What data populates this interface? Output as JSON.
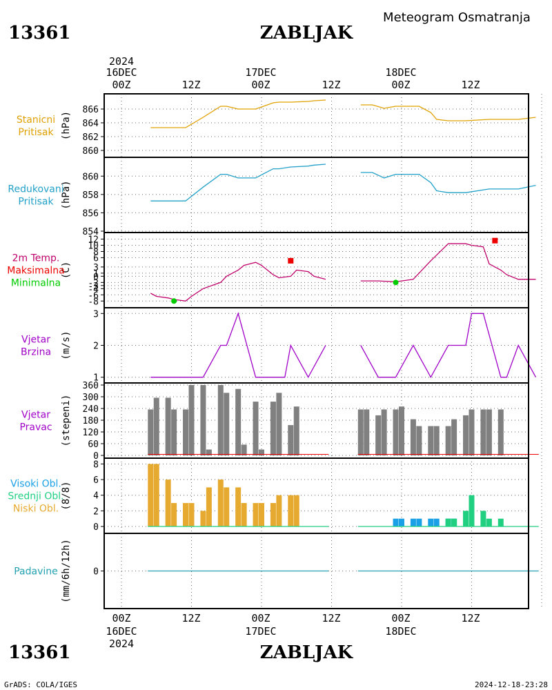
{
  "header": {
    "station_id": "13361",
    "station_name": "ZABLJAK",
    "subtitle": "Meteogram Osmatranja"
  },
  "footer": {
    "station_id": "13361",
    "station_name": "ZABLJAK",
    "credit": "GrADS: COLA/IGES",
    "timestamp": "2024-12-18-23:28"
  },
  "time_axis": {
    "year": "2024",
    "days": [
      "16DEC",
      "17DEC",
      "18DEC"
    ],
    "hour_labels": [
      "00Z",
      "12Z",
      "00Z",
      "12Z",
      "00Z",
      "12Z"
    ]
  },
  "colors": {
    "station_pressure": "#e0a000",
    "reduced_pressure": "#20a0c8",
    "temperature": "#c0006a",
    "max_marker": "#ee0000",
    "min_marker": "#00cc00",
    "wind": "#a000c8",
    "wind_dir_bar": "#808080",
    "high_cloud": "#1aa0e6",
    "mid_cloud": "#20d080",
    "low_cloud": "#e6aa30",
    "precip": "#20a0b0"
  },
  "panels": [
    {
      "key": "station_pressure",
      "labels": [
        "Stanicni",
        "Pritisak"
      ],
      "label_color": "#e0a000",
      "unit": "(hPa)"
    },
    {
      "key": "reduced_pressure",
      "labels": [
        "Redukovani",
        "Pritisak"
      ],
      "label_color": "#20a0c8",
      "unit": "(hPa)"
    },
    {
      "key": "temperature",
      "labels": [
        "2m Temp.",
        "Maksimalna",
        "Minimalna"
      ],
      "label_colors": [
        "#c0006a",
        "#ee0000",
        "#00cc00"
      ],
      "unit": "(C)"
    },
    {
      "key": "wind_speed",
      "labels": [
        "Vjetar",
        "Brzina"
      ],
      "label_color": "#a000c8",
      "unit": "(m/s)"
    },
    {
      "key": "wind_dir",
      "labels": [
        "Vjetar",
        "Pravac"
      ],
      "label_color": "#a000c8",
      "unit": "(stepeni)"
    },
    {
      "key": "clouds",
      "labels": [
        "Visoki Obl.",
        "Srednji Obl.",
        "Niski Obl."
      ],
      "label_colors": [
        "#1aa0e6",
        "#20d080",
        "#e6aa30"
      ],
      "unit": "(8/8)"
    },
    {
      "key": "precip",
      "labels": [
        "Padavine"
      ],
      "label_color": "#20a0b0",
      "unit": "(mm/6h/12h)"
    }
  ],
  "chart_data": {
    "type": "line",
    "x_unit": "hours since 2024-12-16 00Z",
    "station_pressure": {
      "ylim": [
        859.8,
        867.2
      ],
      "ticks": [
        860,
        862,
        864,
        866
      ],
      "segments": [
        {
          "x": [
            5,
            8,
            11,
            14,
            17,
            18,
            20,
            21,
            23,
            26,
            27,
            29,
            32,
            33,
            35
          ],
          "y": [
            863.3,
            863.3,
            863.3,
            864.8,
            866.4,
            866.4,
            866.0,
            866.0,
            866.0,
            866.9,
            867.0,
            867.0,
            867.1,
            867.2,
            867.3
          ]
        },
        {
          "x": [
            41,
            43,
            45,
            47,
            50,
            51,
            53,
            54,
            56,
            59,
            63,
            65,
            68,
            71
          ],
          "y": [
            866.6,
            866.6,
            866.1,
            866.4,
            866.4,
            866.4,
            865.5,
            864.5,
            864.3,
            864.3,
            864.5,
            864.5,
            864.5,
            864.8
          ]
        },
        {
          "x": [
            77,
            78,
            80,
            83,
            86,
            89,
            92,
            95,
            98,
            101,
            104,
            107,
            110,
            113,
            115
          ],
          "y": [
            863.6,
            863.1,
            862.9,
            862.9,
            863.0,
            863.0,
            862.0,
            861.2,
            860.6,
            860.6,
            860.6,
            860.6,
            860.0,
            860.0,
            860.0
          ]
        }
      ]
    },
    "reduced_pressure": {
      "ylim": [
        854.0,
        861.3
      ],
      "ticks": [
        854,
        856,
        858,
        860
      ],
      "segments": [
        {
          "x": [
            5,
            8,
            11,
            14,
            17,
            18,
            20,
            21,
            23,
            26,
            27,
            29,
            32,
            33,
            35
          ],
          "y": [
            857.3,
            857.3,
            857.3,
            858.8,
            860.2,
            860.2,
            859.8,
            859.8,
            859.8,
            860.8,
            860.8,
            861.0,
            861.1,
            861.2,
            861.3
          ]
        },
        {
          "x": [
            41,
            43,
            45,
            47,
            50,
            51,
            53,
            54,
            56,
            59,
            63,
            65,
            68,
            71
          ],
          "y": [
            860.4,
            860.4,
            859.8,
            860.2,
            860.2,
            860.2,
            859.3,
            858.4,
            858.2,
            858.2,
            858.6,
            858.6,
            858.6,
            859.0
          ]
        },
        {
          "x": [
            77,
            78,
            80,
            83,
            86,
            89,
            92,
            95,
            98,
            101,
            104,
            107,
            110,
            113,
            115
          ],
          "y": [
            857.6,
            857.2,
            857.1,
            857.1,
            857.1,
            857.0,
            855.9,
            855.3,
            854.9,
            854.9,
            854.9,
            854.9,
            854.4,
            854.4,
            854.4
          ]
        }
      ]
    },
    "temperature": {
      "ylim": [
        -9.5,
        13
      ],
      "ticks": [
        -8,
        -6,
        -4,
        -3,
        -2,
        0,
        1,
        3,
        6,
        8,
        10,
        12
      ],
      "segments": [
        {
          "x": [
            5,
            6,
            8,
            9,
            11,
            12,
            14,
            17,
            18,
            20,
            21,
            23,
            24,
            26,
            27,
            29,
            30,
            32,
            33,
            35
          ],
          "y": [
            -5.5,
            -6.5,
            -7,
            -7.5,
            -8,
            -6.5,
            -4,
            -2,
            0,
            2,
            3.5,
            4.5,
            3.5,
            0.5,
            -0.5,
            0,
            2,
            1.5,
            0,
            -1
          ]
        },
        {
          "x": [
            41,
            44,
            47,
            50,
            53,
            56,
            59,
            60,
            62,
            63,
            65,
            66,
            68,
            71
          ],
          "y": [
            -1.5,
            -1.5,
            -1.8,
            -1,
            5,
            10.5,
            10.5,
            10,
            9.5,
            4,
            2,
            0.5,
            -1,
            -1
          ]
        },
        {
          "x": [
            77,
            78,
            80,
            81,
            83,
            84,
            86,
            89,
            92,
            95,
            98,
            101,
            104,
            107,
            109,
            110,
            113,
            115
          ],
          "y": [
            -2,
            -2.5,
            -2.5,
            -2.5,
            -2,
            -1,
            2,
            7,
            10,
            12,
            11,
            6,
            3,
            -0.5,
            -1,
            -1,
            -1,
            -1.2
          ]
        }
      ],
      "max_markers": [
        {
          "x": 29,
          "y": 5
        },
        {
          "x": 64,
          "y": 11.5
        },
        {
          "x": 111,
          "y": 11.5
        }
      ],
      "min_markers": [
        {
          "x": 9,
          "y": -8
        },
        {
          "x": 47,
          "y": -2
        },
        {
          "x": 83,
          "y": -2.5
        }
      ]
    },
    "wind_speed": {
      "ylim": [
        0.95,
        3.05
      ],
      "ticks": [
        1,
        2,
        3
      ],
      "segments": [
        {
          "x": [
            5,
            8,
            11,
            14,
            17,
            18,
            20,
            23,
            26,
            28,
            29,
            32,
            35
          ],
          "y": [
            1,
            1,
            1,
            1,
            2,
            2,
            3,
            1,
            1,
            1,
            2,
            1,
            2
          ]
        },
        {
          "x": [
            41,
            44,
            47,
            50,
            53,
            56,
            59,
            60,
            62,
            65,
            66,
            68,
            71
          ],
          "y": [
            2,
            1,
            1,
            2,
            1,
            2,
            2,
            3,
            3,
            1,
            1,
            2,
            1
          ]
        },
        {
          "x": [
            77,
            80,
            83,
            86,
            89,
            92,
            95,
            98,
            101,
            104,
            107,
            110,
            113,
            115
          ],
          "y": [
            1,
            1,
            1,
            1,
            1,
            1,
            1,
            1,
            2,
            1,
            1,
            1,
            1,
            1
          ]
        }
      ]
    },
    "wind_dir": {
      "ylim": [
        0,
        360
      ],
      "ticks": [
        0,
        60,
        120,
        180,
        240,
        300,
        360
      ],
      "bars": [
        {
          "x": 5,
          "v": 235
        },
        {
          "x": 6,
          "v": 295
        },
        {
          "x": 8,
          "v": 295
        },
        {
          "x": 9,
          "v": 235
        },
        {
          "x": 11,
          "v": 235
        },
        {
          "x": 12,
          "v": 360
        },
        {
          "x": 14,
          "v": 360
        },
        {
          "x": 15,
          "v": 30
        },
        {
          "x": 17,
          "v": 360
        },
        {
          "x": 18,
          "v": 320
        },
        {
          "x": 20,
          "v": 340
        },
        {
          "x": 21,
          "v": 55
        },
        {
          "x": 23,
          "v": 275
        },
        {
          "x": 24,
          "v": 30
        },
        {
          "x": 26,
          "v": 275
        },
        {
          "x": 27,
          "v": 320
        },
        {
          "x": 29,
          "v": 155
        },
        {
          "x": 30,
          "v": 250
        },
        {
          "x": 41,
          "v": 235
        },
        {
          "x": 42,
          "v": 235
        },
        {
          "x": 44,
          "v": 205
        },
        {
          "x": 45,
          "v": 235
        },
        {
          "x": 47,
          "v": 235
        },
        {
          "x": 48,
          "v": 250
        },
        {
          "x": 50,
          "v": 185
        },
        {
          "x": 51,
          "v": 150
        },
        {
          "x": 53,
          "v": 150
        },
        {
          "x": 54,
          "v": 150
        },
        {
          "x": 56,
          "v": 150
        },
        {
          "x": 57,
          "v": 185
        },
        {
          "x": 59,
          "v": 205
        },
        {
          "x": 60,
          "v": 235
        },
        {
          "x": 62,
          "v": 235
        },
        {
          "x": 63,
          "v": 235
        },
        {
          "x": 65,
          "v": 235
        },
        {
          "x": 77,
          "v": 235
        },
        {
          "x": 78,
          "v": 250
        },
        {
          "x": 80,
          "v": 235
        },
        {
          "x": 81,
          "v": 235
        },
        {
          "x": 83,
          "v": 235
        },
        {
          "x": 84,
          "v": 235
        },
        {
          "x": 86,
          "v": 250
        },
        {
          "x": 87,
          "v": 250
        },
        {
          "x": 89,
          "v": 150
        },
        {
          "x": 90,
          "v": 150
        },
        {
          "x": 92,
          "v": 110
        },
        {
          "x": 93,
          "v": 250
        },
        {
          "x": 95,
          "v": 250
        },
        {
          "x": 96,
          "v": 235
        },
        {
          "x": 98,
          "v": 235
        },
        {
          "x": 99,
          "v": 235
        },
        {
          "x": 101,
          "v": 235
        },
        {
          "x": 102,
          "v": 235
        }
      ],
      "segments": [
        [
          5,
          35.5
        ],
        [
          41,
          71.5
        ],
        [
          77,
          115.5
        ]
      ]
    },
    "clouds": {
      "ylim": [
        0,
        8.3
      ],
      "ticks": [
        0,
        2,
        4,
        6,
        8
      ],
      "series": [
        {
          "key": "high",
          "values": [
            {
              "x": 47,
              "v": 1
            },
            {
              "x": 48,
              "v": 1
            },
            {
              "x": 50,
              "v": 1
            },
            {
              "x": 51,
              "v": 1
            },
            {
              "x": 53,
              "v": 1
            },
            {
              "x": 54,
              "v": 1
            },
            {
              "x": 56,
              "v": 1
            },
            {
              "x": 57,
              "v": 1
            },
            {
              "x": 80,
              "v": 1
            },
            {
              "x": 81,
              "v": 2
            },
            {
              "x": 83,
              "v": 3
            },
            {
              "x": 84,
              "v": 3
            },
            {
              "x": 86,
              "v": 2
            },
            {
              "x": 87,
              "v": 2
            },
            {
              "x": 89,
              "v": 3
            },
            {
              "x": 90,
              "v": 4
            },
            {
              "x": 92,
              "v": 6
            },
            {
              "x": 93,
              "v": 6
            },
            {
              "x": 95,
              "v": 5
            },
            {
              "x": 96,
              "v": 4
            },
            {
              "x": 98,
              "v": 2
            },
            {
              "x": 99,
              "v": 2
            },
            {
              "x": 101,
              "v": 2
            },
            {
              "x": 102,
              "v": 2
            }
          ]
        },
        {
          "key": "mid",
          "values": [
            {
              "x": 56,
              "v": 1
            },
            {
              "x": 57,
              "v": 1
            },
            {
              "x": 59,
              "v": 2
            },
            {
              "x": 60,
              "v": 4
            },
            {
              "x": 62,
              "v": 2
            },
            {
              "x": 63,
              "v": 1
            },
            {
              "x": 65,
              "v": 1
            },
            {
              "x": 77,
              "v": 1
            },
            {
              "x": 78,
              "v": 1
            },
            {
              "x": 80,
              "v": 1
            },
            {
              "x": 96,
              "v": 1
            },
            {
              "x": 98,
              "v": 1
            },
            {
              "x": 99,
              "v": 1
            },
            {
              "x": 101,
              "v": 1
            },
            {
              "x": 102,
              "v": 1
            }
          ]
        },
        {
          "key": "low",
          "values": [
            {
              "x": 5,
              "v": 8
            },
            {
              "x": 6,
              "v": 8
            },
            {
              "x": 8,
              "v": 6
            },
            {
              "x": 9,
              "v": 3
            },
            {
              "x": 11,
              "v": 3
            },
            {
              "x": 12,
              "v": 3
            },
            {
              "x": 14,
              "v": 2
            },
            {
              "x": 15,
              "v": 5
            },
            {
              "x": 17,
              "v": 6
            },
            {
              "x": 18,
              "v": 5
            },
            {
              "x": 20,
              "v": 5
            },
            {
              "x": 21,
              "v": 3
            },
            {
              "x": 23,
              "v": 3
            },
            {
              "x": 24,
              "v": 3
            },
            {
              "x": 26,
              "v": 3
            },
            {
              "x": 27,
              "v": 4
            },
            {
              "x": 29,
              "v": 4
            },
            {
              "x": 30,
              "v": 4
            }
          ]
        }
      ]
    },
    "precip": {
      "ylim": [
        -1,
        1
      ],
      "ticks": [
        0
      ],
      "segments": [
        [
          5,
          35.5
        ],
        [
          41,
          71.5
        ],
        [
          77,
          115.5
        ]
      ]
    }
  }
}
